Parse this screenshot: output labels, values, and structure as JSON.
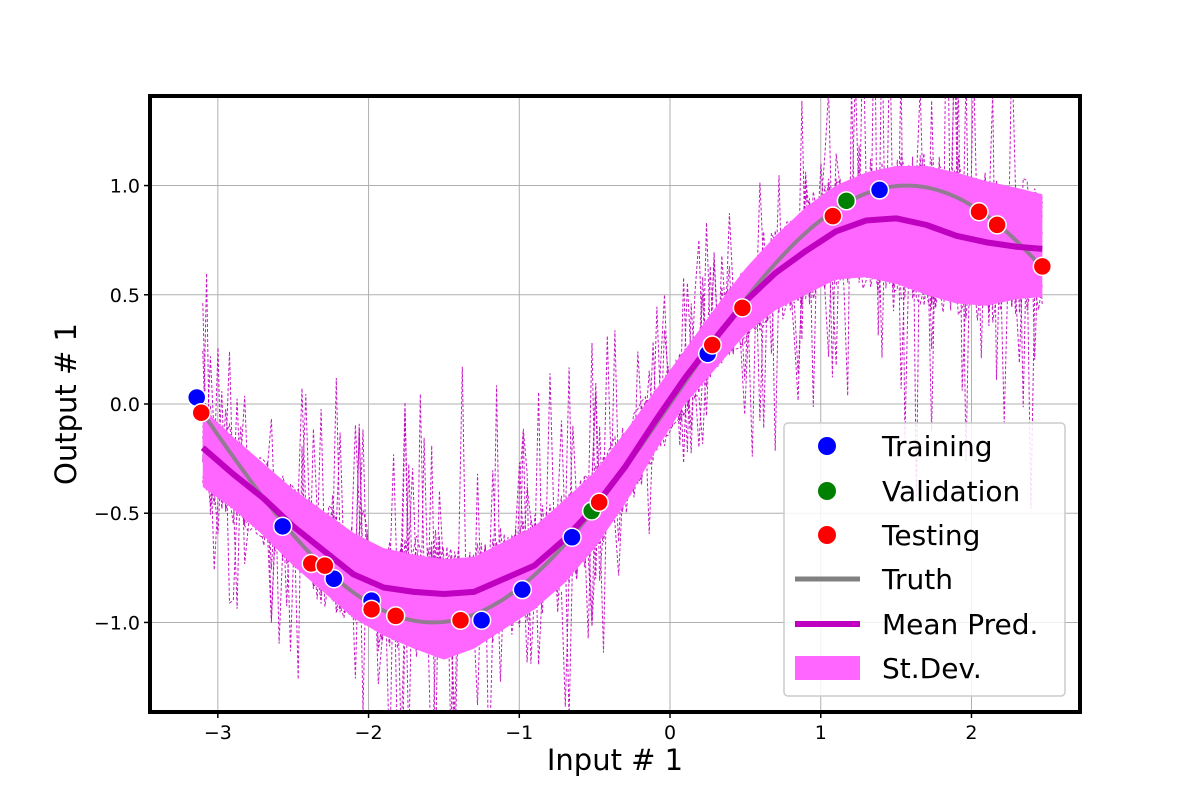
{
  "chart_data": {
    "type": "line",
    "xlabel": "Input # 1",
    "ylabel": "Output # 1",
    "xlim": [
      -3.45,
      2.72
    ],
    "ylim": [
      -1.41,
      1.41
    ],
    "xticks": [
      -3,
      -2,
      -1,
      0,
      1,
      2
    ],
    "yticks": [
      -1.0,
      -0.5,
      0.0,
      0.5,
      1.0
    ],
    "xtick_labels": [
      "−3",
      "−2",
      "−1",
      "0",
      "1",
      "2"
    ],
    "ytick_labels": [
      "−1.0",
      "−0.5",
      "0.0",
      "0.5",
      "1.0"
    ],
    "grid": true,
    "legend_position": "lower-right",
    "x_range": [
      -3.1,
      2.47
    ],
    "truth": {
      "name": "Truth",
      "color": "#808080",
      "function": "sin(x)"
    },
    "mean": {
      "name": "Mean Pred.",
      "color": "#c000c0",
      "x": [
        -3.1,
        -2.9,
        -2.7,
        -2.5,
        -2.3,
        -2.1,
        -1.9,
        -1.7,
        -1.5,
        -1.3,
        -1.1,
        -0.9,
        -0.7,
        -0.5,
        -0.3,
        -0.1,
        0.1,
        0.3,
        0.5,
        0.7,
        0.9,
        1.1,
        1.3,
        1.5,
        1.7,
        1.9,
        2.1,
        2.3,
        2.47
      ],
      "y": [
        -0.2,
        -0.32,
        -0.43,
        -0.56,
        -0.67,
        -0.78,
        -0.84,
        -0.86,
        -0.87,
        -0.86,
        -0.8,
        -0.74,
        -0.62,
        -0.47,
        -0.29,
        -0.08,
        0.12,
        0.3,
        0.47,
        0.6,
        0.7,
        0.79,
        0.84,
        0.85,
        0.82,
        0.77,
        0.74,
        0.72,
        0.71
      ]
    },
    "stdev": {
      "name": "St.Dev.",
      "color": "#ff66ff",
      "lower": [
        -0.38,
        -0.48,
        -0.6,
        -0.74,
        -0.86,
        -0.98,
        -1.06,
        -1.12,
        -1.17,
        -1.12,
        -1.03,
        -0.94,
        -0.82,
        -0.66,
        -0.46,
        -0.22,
        0.0,
        0.16,
        0.32,
        0.43,
        0.5,
        0.57,
        0.58,
        0.55,
        0.5,
        0.46,
        0.45,
        0.48,
        0.49
      ],
      "upper": [
        -0.02,
        -0.15,
        -0.27,
        -0.39,
        -0.49,
        -0.59,
        -0.66,
        -0.69,
        -0.71,
        -0.7,
        -0.63,
        -0.56,
        -0.44,
        -0.31,
        -0.13,
        0.06,
        0.25,
        0.44,
        0.62,
        0.77,
        0.9,
        1.0,
        1.06,
        1.09,
        1.09,
        1.06,
        1.02,
        0.99,
        0.96
      ]
    },
    "ensemble": {
      "color": "#c000c0",
      "n_members": 12
    },
    "training": {
      "name": "Training",
      "color": "#0000ff",
      "points": [
        [
          -3.14,
          0.03
        ],
        [
          -2.57,
          -0.56
        ],
        [
          -2.23,
          -0.8
        ],
        [
          -1.98,
          -0.9
        ],
        [
          -1.25,
          -0.99
        ],
        [
          -0.98,
          -0.85
        ],
        [
          -0.65,
          -0.61
        ],
        [
          0.25,
          0.23
        ],
        [
          1.39,
          0.98
        ]
      ]
    },
    "validation": {
      "name": "Validation",
      "color": "#008000",
      "points": [
        [
          -0.52,
          -0.49
        ],
        [
          1.17,
          0.93
        ]
      ]
    },
    "testing": {
      "name": "Testing",
      "color": "#ff0000",
      "points": [
        [
          -3.11,
          -0.04
        ],
        [
          -2.38,
          -0.73
        ],
        [
          -2.29,
          -0.74
        ],
        [
          -1.98,
          -0.94
        ],
        [
          -1.82,
          -0.97
        ],
        [
          -1.39,
          -0.99
        ],
        [
          -0.47,
          -0.45
        ],
        [
          0.28,
          0.27
        ],
        [
          0.48,
          0.44
        ],
        [
          1.08,
          0.86
        ],
        [
          2.05,
          0.88
        ],
        [
          2.17,
          0.82
        ],
        [
          2.47,
          0.63
        ]
      ]
    },
    "legend": [
      "Training",
      "Validation",
      "Testing",
      "Truth",
      "Mean Pred.",
      "St.Dev."
    ]
  }
}
